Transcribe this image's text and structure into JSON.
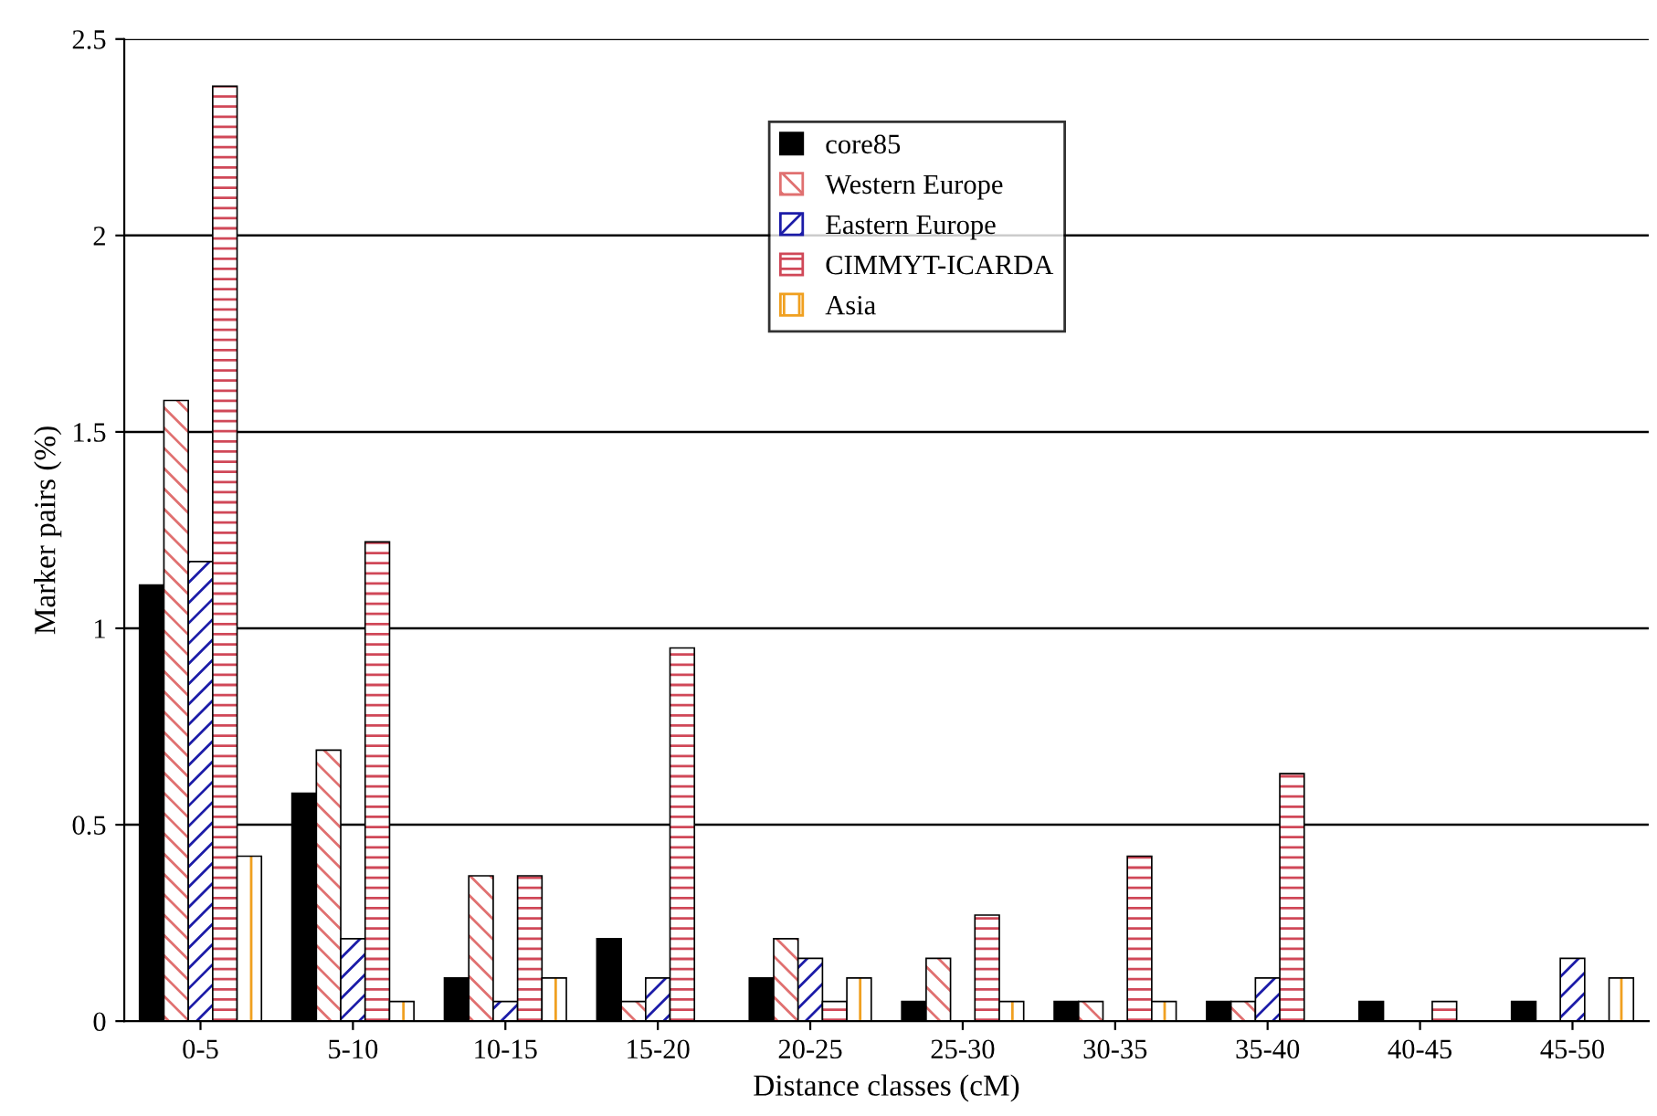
{
  "chart_data": {
    "type": "bar",
    "xlabel": "Distance classes (cM)",
    "ylabel": "Marker pairs (%)",
    "categories": [
      "0-5",
      "5-10",
      "10-15",
      "15-20",
      "20-25",
      "25-30",
      "30-35",
      "35-40",
      "40-45",
      "45-50"
    ],
    "series": [
      {
        "name": "core85",
        "color": "#000000",
        "values": [
          1.11,
          0.58,
          0.11,
          0.21,
          0.11,
          0.05,
          0.05,
          0.05,
          0.05,
          0.05
        ]
      },
      {
        "name": "Western Europe",
        "color": "#e07070",
        "values": [
          1.58,
          0.69,
          0.37,
          0.05,
          0.21,
          0.16,
          0.05,
          0.05,
          0,
          0
        ]
      },
      {
        "name": "Eastern Europe",
        "color": "#1c1ca8",
        "values": [
          1.17,
          0.21,
          0.05,
          0.11,
          0.16,
          0,
          0,
          0.11,
          0,
          0.16
        ]
      },
      {
        "name": "CIMMYT-ICARDA",
        "color": "#d04858",
        "values": [
          2.38,
          1.22,
          0.37,
          0.95,
          0.05,
          0.27,
          0.42,
          0.63,
          0.05,
          0
        ]
      },
      {
        "name": "Asia",
        "color": "#f0a020",
        "values": [
          0.42,
          0.05,
          0.11,
          0,
          0.11,
          0.05,
          0.05,
          0,
          0,
          0.11
        ]
      }
    ],
    "ylim": [
      0,
      2.5
    ],
    "yticks": [
      0,
      0.5,
      1,
      1.5,
      2,
      2.5
    ],
    "grid": "y",
    "legend": "top"
  }
}
